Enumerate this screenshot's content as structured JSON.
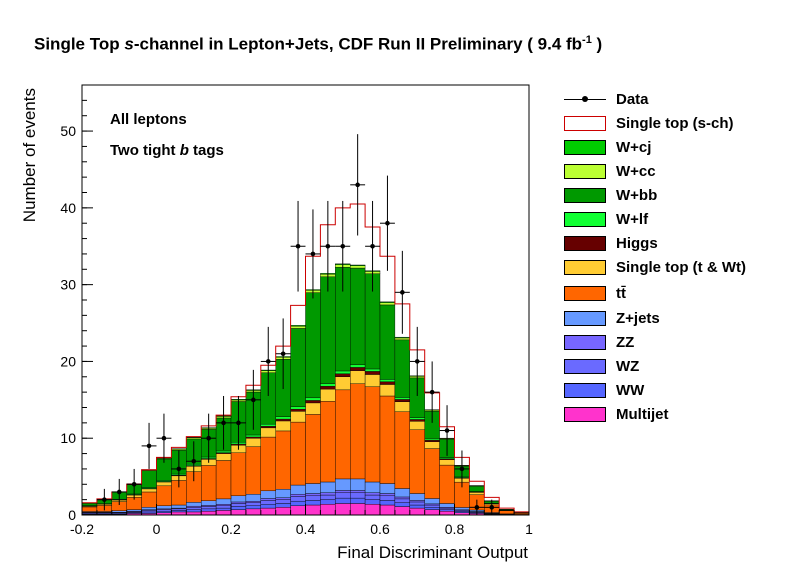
{
  "title_parts": {
    "pre": "Single Top ",
    "italic": "s",
    "post": "-channel in Lepton+Jets, CDF Run II Preliminary ( 9.4 fb",
    "sup": "-1",
    "end": " )"
  },
  "annotations": {
    "line1": "All leptons",
    "line2_pre": "Two tight ",
    "line2_italic": "b",
    "line2_post": " tags"
  },
  "legend": {
    "data": "Data",
    "signal": "Single top (s-ch)",
    "wcj": "W+cj",
    "wcc": "W+cc",
    "wbb": "W+bb",
    "wlf": "W+lf",
    "higgs": "Higgs",
    "stop_tw": "Single top (t & Wt)",
    "ttbar": "tt̄",
    "zjets": "Z+jets",
    "zz": "ZZ",
    "wz": "WZ",
    "ww": "WW",
    "multijet": "Multijet"
  },
  "colors": {
    "multijet": "#ff33cc",
    "ww": "#5566ff",
    "wz": "#6a6aff",
    "zz": "#7766ff",
    "zjets": "#6699ff",
    "ttbar": "#ff6600",
    "stop_tw": "#ffcc33",
    "higgs": "#660000",
    "wlf": "#11ff33",
    "wbb": "#009900",
    "wcc": "#bbff33",
    "wcj": "#00cc00",
    "signal_line": "#cc0000",
    "data": "#000000"
  },
  "chart_data": {
    "type": "stacked-histogram",
    "xlabel": "Final Discriminant Output",
    "ylabel": "Number of events",
    "xlim": [
      -0.2,
      1.0
    ],
    "ylim": [
      0,
      56
    ],
    "bin_width": 0.04,
    "x_ticks": [
      "-0.2",
      "0",
      "0.2",
      "0.4",
      "0.6",
      "0.8",
      "1"
    ],
    "x_tick_values": [
      -0.2,
      0,
      0.2,
      0.4,
      0.6,
      0.8,
      1.0
    ],
    "y_ticks": [
      "0",
      "10",
      "20",
      "30",
      "40",
      "50"
    ],
    "y_tick_values": [
      0,
      10,
      20,
      30,
      40,
      50
    ],
    "bin_edges": [
      -0.2,
      -0.16,
      -0.12,
      -0.08,
      -0.04,
      0,
      0.04,
      0.08,
      0.12,
      0.16,
      0.2,
      0.24,
      0.28,
      0.32,
      0.36,
      0.4,
      0.44,
      0.48,
      0.52,
      0.56,
      0.6,
      0.64,
      0.68,
      0.72,
      0.76,
      0.8,
      0.84,
      0.88,
      0.92,
      0.96,
      1.0
    ],
    "stack_order": [
      "multijet",
      "ww",
      "wz",
      "zz",
      "zjets",
      "ttbar",
      "stop_tw",
      "higgs",
      "wlf",
      "wbb",
      "wcc",
      "wcj"
    ],
    "series": [
      {
        "name": "Multijet",
        "key": "multijet",
        "values": [
          0.1,
          0.1,
          0.1,
          0.2,
          0.2,
          0.3,
          0.4,
          0.4,
          0.5,
          0.6,
          0.7,
          0.8,
          0.9,
          1.0,
          1.2,
          1.3,
          1.4,
          1.5,
          1.5,
          1.4,
          1.3,
          1.1,
          0.9,
          0.7,
          0.5,
          0.3,
          0.2,
          0.1,
          0.05,
          0.02
        ]
      },
      {
        "name": "WW",
        "key": "ww",
        "values": [
          0.1,
          0.1,
          0.1,
          0.1,
          0.2,
          0.2,
          0.2,
          0.3,
          0.3,
          0.3,
          0.4,
          0.4,
          0.5,
          0.5,
          0.6,
          0.6,
          0.6,
          0.7,
          0.7,
          0.6,
          0.6,
          0.5,
          0.4,
          0.3,
          0.2,
          0.15,
          0.1,
          0.05,
          0.02,
          0.01
        ]
      },
      {
        "name": "WZ",
        "key": "wz",
        "values": [
          0.1,
          0.1,
          0.1,
          0.1,
          0.2,
          0.2,
          0.2,
          0.3,
          0.3,
          0.3,
          0.4,
          0.4,
          0.5,
          0.5,
          0.6,
          0.6,
          0.6,
          0.7,
          0.7,
          0.6,
          0.6,
          0.5,
          0.4,
          0.3,
          0.2,
          0.15,
          0.1,
          0.05,
          0.02,
          0.01
        ]
      },
      {
        "name": "ZZ",
        "key": "zz",
        "values": [
          0.05,
          0.05,
          0.05,
          0.1,
          0.1,
          0.1,
          0.1,
          0.15,
          0.15,
          0.2,
          0.2,
          0.2,
          0.25,
          0.25,
          0.3,
          0.3,
          0.3,
          0.3,
          0.3,
          0.3,
          0.3,
          0.25,
          0.2,
          0.15,
          0.1,
          0.08,
          0.05,
          0.02,
          0.01,
          0.01
        ]
      },
      {
        "name": "Z+jets",
        "key": "zjets",
        "values": [
          0.1,
          0.1,
          0.2,
          0.2,
          0.3,
          0.4,
          0.4,
          0.5,
          0.6,
          0.7,
          0.8,
          0.9,
          1.0,
          1.1,
          1.2,
          1.3,
          1.4,
          1.5,
          1.5,
          1.4,
          1.3,
          1.1,
          0.9,
          0.7,
          0.5,
          0.3,
          0.2,
          0.1,
          0.05,
          0.02
        ]
      },
      {
        "name": "tt̄",
        "key": "ttbar",
        "values": [
          0.6,
          0.8,
          1.2,
          1.6,
          2.0,
          2.6,
          3.2,
          4.0,
          4.6,
          5.0,
          5.6,
          6.2,
          7.0,
          7.6,
          8.2,
          9.0,
          10.5,
          11.6,
          12.4,
          12.4,
          11.4,
          10.0,
          8.3,
          6.5,
          5.0,
          3.3,
          2.0,
          1.0,
          0.4,
          0.15
        ]
      },
      {
        "name": "Single top (t & Wt)",
        "key": "stop_tw",
        "values": [
          0.1,
          0.15,
          0.2,
          0.3,
          0.4,
          0.5,
          0.6,
          0.7,
          0.8,
          0.9,
          1.0,
          1.1,
          1.2,
          1.3,
          1.4,
          1.5,
          1.6,
          1.7,
          1.7,
          1.6,
          1.5,
          1.3,
          1.1,
          0.9,
          0.7,
          0.5,
          0.3,
          0.15,
          0.05,
          0.02
        ]
      },
      {
        "name": "Higgs",
        "key": "higgs",
        "values": [
          0.02,
          0.02,
          0.03,
          0.04,
          0.05,
          0.06,
          0.07,
          0.08,
          0.1,
          0.12,
          0.14,
          0.16,
          0.2,
          0.24,
          0.28,
          0.32,
          0.36,
          0.4,
          0.42,
          0.4,
          0.36,
          0.3,
          0.24,
          0.18,
          0.12,
          0.08,
          0.05,
          0.02,
          0.01,
          0.01
        ]
      },
      {
        "name": "W+lf",
        "key": "wlf",
        "values": [
          0.05,
          0.05,
          0.08,
          0.1,
          0.12,
          0.14,
          0.16,
          0.18,
          0.2,
          0.22,
          0.24,
          0.26,
          0.28,
          0.3,
          0.32,
          0.34,
          0.36,
          0.36,
          0.34,
          0.32,
          0.3,
          0.26,
          0.22,
          0.18,
          0.14,
          0.1,
          0.06,
          0.03,
          0.01,
          0.01
        ]
      },
      {
        "name": "W+bb",
        "key": "wbb",
        "values": [
          0.3,
          0.5,
          0.9,
          1.2,
          2.2,
          2.8,
          3.1,
          3.3,
          3.6,
          4.3,
          5.3,
          5.6,
          6.7,
          7.5,
          10.2,
          13.7,
          13.9,
          13.5,
          12.6,
          12.4,
          9.7,
          7.5,
          5.2,
          3.6,
          2.4,
          1.4,
          0.7,
          0.3,
          0.1,
          0.05
        ]
      },
      {
        "name": "W+cc",
        "key": "wcc",
        "values": [
          0.05,
          0.05,
          0.05,
          0.1,
          0.1,
          0.1,
          0.15,
          0.15,
          0.15,
          0.2,
          0.2,
          0.2,
          0.25,
          0.25,
          0.3,
          0.3,
          0.35,
          0.35,
          0.3,
          0.3,
          0.3,
          0.25,
          0.2,
          0.15,
          0.1,
          0.08,
          0.05,
          0.02,
          0.01,
          0.01
        ]
      },
      {
        "name": "W+cj",
        "key": "wcj",
        "values": [
          0.02,
          0.02,
          0.03,
          0.04,
          0.05,
          0.05,
          0.06,
          0.07,
          0.08,
          0.09,
          0.1,
          0.1,
          0.1,
          0.1,
          0.1,
          0.1,
          0.1,
          0.1,
          0.1,
          0.1,
          0.1,
          0.1,
          0.08,
          0.06,
          0.05,
          0.04,
          0.03,
          0.02,
          0.01,
          0.01
        ]
      }
    ],
    "signal_total": [
      1.6,
      2.1,
      3.0,
      4.0,
      5.9,
      7.5,
      8.8,
      10.2,
      11.6,
      13.0,
      15.4,
      16.9,
      19.5,
      22.0,
      27.3,
      33.7,
      37.8,
      40.0,
      40.5,
      37.5,
      33.7,
      27.5,
      21.5,
      15.9,
      11.5,
      7.5,
      4.4,
      2.3,
      0.9,
      0.4
    ],
    "data_points": [
      {
        "x": -0.14,
        "y": 2,
        "err": 1.4
      },
      {
        "x": -0.1,
        "y": 3,
        "err": 1.7
      },
      {
        "x": -0.06,
        "y": 4,
        "err": 2.0
      },
      {
        "x": -0.02,
        "y": 9,
        "err": 3.0
      },
      {
        "x": 0.02,
        "y": 10,
        "err": 3.2
      },
      {
        "x": 0.06,
        "y": 6,
        "err": 2.4
      },
      {
        "x": 0.1,
        "y": 7,
        "err": 2.6
      },
      {
        "x": 0.14,
        "y": 10,
        "err": 3.2
      },
      {
        "x": 0.18,
        "y": 12,
        "err": 3.5
      },
      {
        "x": 0.22,
        "y": 12,
        "err": 3.5
      },
      {
        "x": 0.26,
        "y": 15,
        "err": 3.9
      },
      {
        "x": 0.3,
        "y": 20,
        "err": 4.5
      },
      {
        "x": 0.34,
        "y": 21,
        "err": 4.6
      },
      {
        "x": 0.38,
        "y": 35,
        "err": 5.9
      },
      {
        "x": 0.42,
        "y": 34,
        "err": 5.8
      },
      {
        "x": 0.46,
        "y": 35,
        "err": 5.9
      },
      {
        "x": 0.5,
        "y": 35,
        "err": 5.9
      },
      {
        "x": 0.54,
        "y": 43,
        "err": 6.6
      },
      {
        "x": 0.58,
        "y": 35,
        "err": 5.9
      },
      {
        "x": 0.62,
        "y": 38,
        "err": 6.2
      },
      {
        "x": 0.66,
        "y": 29,
        "err": 5.4
      },
      {
        "x": 0.7,
        "y": 20,
        "err": 4.5
      },
      {
        "x": 0.74,
        "y": 16,
        "err": 4.0
      },
      {
        "x": 0.78,
        "y": 11,
        "err": 3.3
      },
      {
        "x": 0.82,
        "y": 6,
        "err": 2.4
      },
      {
        "x": 0.86,
        "y": 1,
        "err": 1.0
      },
      {
        "x": 0.9,
        "y": 1,
        "err": 1.0
      }
    ]
  }
}
